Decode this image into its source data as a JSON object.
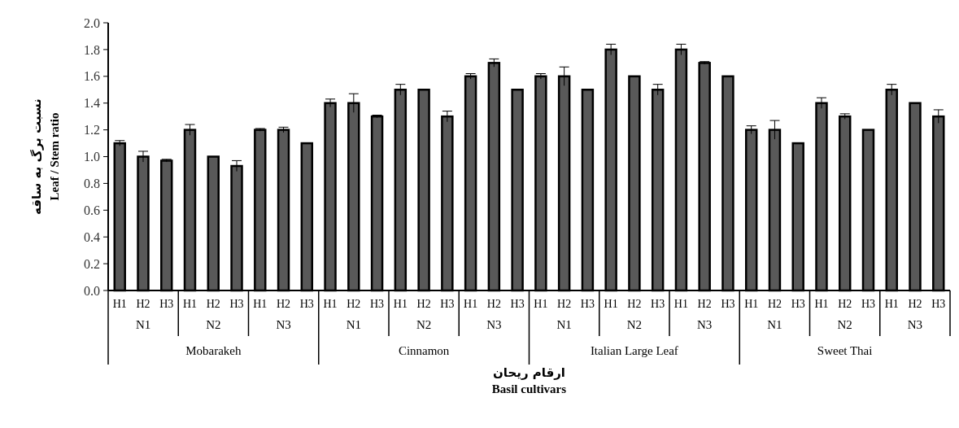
{
  "chart_data": {
    "type": "bar",
    "ylabel": "نسبت برگ به ساقه\nLeaf / Stem ratio",
    "xlabel": "ارقام ریحان\nBasil cultivars",
    "categories": [
      "H1",
      "H2",
      "H3",
      "H1",
      "H2",
      "H3",
      "H1",
      "H2",
      "H3",
      "H1",
      "H2",
      "H3",
      "H1",
      "H2",
      "H3",
      "H1",
      "H2",
      "H3",
      "H1",
      "H2",
      "H3",
      "H1",
      "H2",
      "H3",
      "H1",
      "H2",
      "H3",
      "H1",
      "H2",
      "H3",
      "H1",
      "H2",
      "H3",
      "H1",
      "H2",
      "H3"
    ],
    "values": [
      1.1,
      1.0,
      0.97,
      1.2,
      1.0,
      0.93,
      1.2,
      1.2,
      1.1,
      1.4,
      1.4,
      1.3,
      1.5,
      1.5,
      1.3,
      1.6,
      1.7,
      1.5,
      1.6,
      1.6,
      1.5,
      1.8,
      1.6,
      1.5,
      1.8,
      1.7,
      1.6,
      1.2,
      1.2,
      1.1,
      1.4,
      1.3,
      1.2,
      1.5,
      1.4,
      1.3
    ],
    "errors": [
      0.02,
      0.04,
      0.01,
      0.04,
      null,
      0.04,
      0.01,
      0.02,
      null,
      0.03,
      0.07,
      0.01,
      0.04,
      null,
      0.04,
      0.02,
      0.03,
      null,
      0.02,
      0.07,
      null,
      0.04,
      null,
      0.04,
      0.04,
      0.01,
      null,
      0.03,
      0.07,
      null,
      0.04,
      0.02,
      null,
      0.04,
      null,
      0.05
    ],
    "color": "#595959",
    "ylim": [
      0,
      2
    ],
    "yticks": [
      {
        "value": 0,
        "label": "0.0"
      },
      {
        "value": 0.2,
        "label": "0.2"
      },
      {
        "value": 0.4,
        "label": "0.4"
      },
      {
        "value": 0.6,
        "label": "0.6"
      },
      {
        "value": 0.8,
        "label": "0.8"
      },
      {
        "value": 1,
        "label": "1.0"
      },
      {
        "value": 1.2,
        "label": "1.2"
      },
      {
        "value": 1.4,
        "label": "1.4"
      },
      {
        "value": 1.6,
        "label": "1.6"
      },
      {
        "value": 1.8,
        "label": "1.8"
      },
      {
        "value": 2,
        "label": "2.0"
      }
    ],
    "annotations": [
      "N1",
      "N2",
      "N3",
      "N1",
      "N2",
      "N3",
      "N1",
      "N2",
      "N3",
      "N1",
      "N2",
      "N3",
      "Mobarakeh",
      "Cinnamon",
      "Italian Large Leaf",
      "Sweet Thai"
    ]
  }
}
